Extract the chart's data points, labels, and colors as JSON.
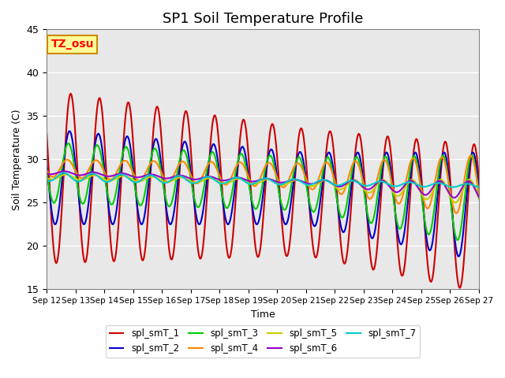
{
  "title": "SP1 Soil Temperature Profile",
  "xlabel": "Time",
  "ylabel": "Soil Temperature (C)",
  "ylim": [
    15,
    45
  ],
  "xlim": [
    0,
    360
  ],
  "annotation_text": "TZ_osu",
  "annotation_bg": "#FFFF99",
  "annotation_border": "#CC8800",
  "bg_color": "#E8E8E8",
  "series": {
    "spl_smT_1": {
      "color": "#CC0000",
      "lw": 1.5
    },
    "spl_smT_2": {
      "color": "#0000CC",
      "lw": 1.5
    },
    "spl_smT_3": {
      "color": "#00CC00",
      "lw": 1.5
    },
    "spl_smT_4": {
      "color": "#FF8800",
      "lw": 1.5
    },
    "spl_smT_5": {
      "color": "#CCCC00",
      "lw": 1.5
    },
    "spl_smT_6": {
      "color": "#9900CC",
      "lw": 1.5
    },
    "spl_smT_7": {
      "color": "#00CCCC",
      "lw": 1.5
    }
  },
  "xtick_labels": [
    "Sep 12",
    "Sep 13",
    "Sep 14",
    "Sep 15",
    "Sep 16",
    "Sep 17",
    "Sep 18",
    "Sep 19",
    "Sep 20",
    "Sep 21",
    "Sep 22",
    "Sep 23",
    "Sep 24",
    "Sep 25",
    "Sep 26",
    "Sep 27"
  ],
  "ytick_vals": [
    15,
    20,
    25,
    30,
    35,
    40,
    45
  ]
}
